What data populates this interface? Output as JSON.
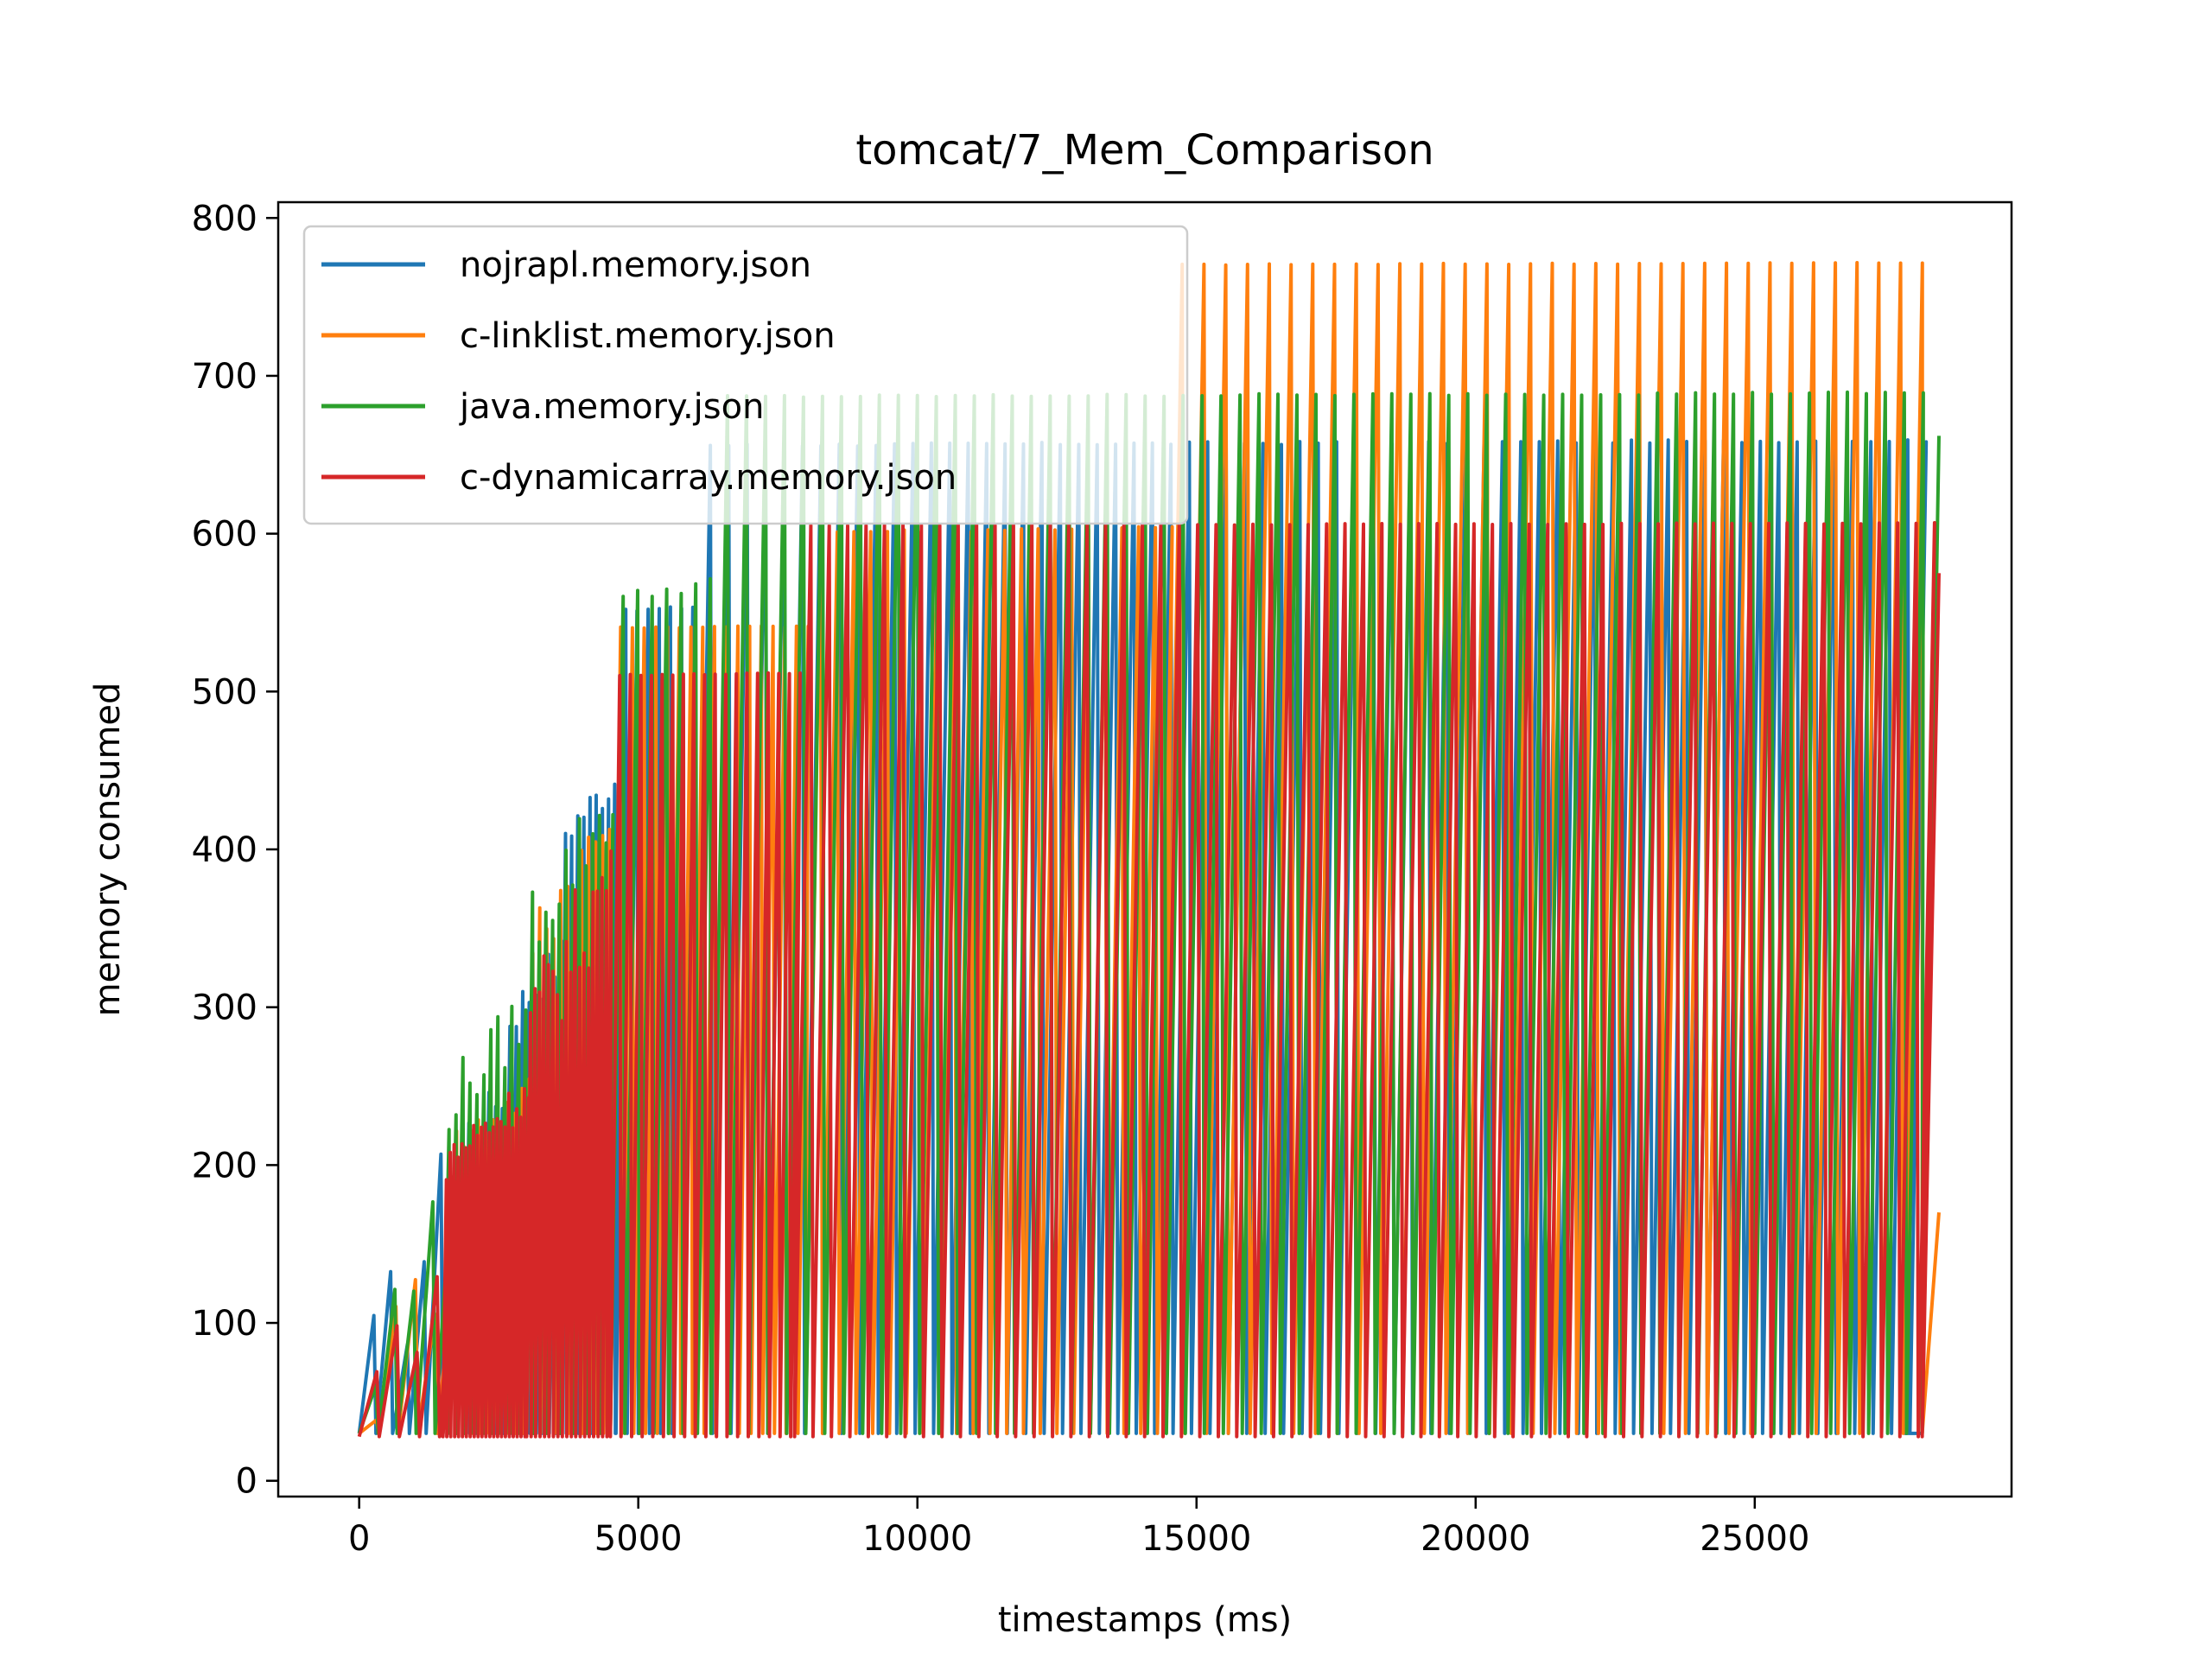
{
  "chart_data": {
    "type": "line",
    "title": "tomcat/7_Mem_Comparison",
    "xlabel": "timestamps (ms)",
    "ylabel": "memory consumed",
    "xlim": [
      -1450,
      29600
    ],
    "ylim": [
      -10,
      810
    ],
    "xticks": [
      0,
      5000,
      10000,
      15000,
      20000,
      25000
    ],
    "yticks": [
      0,
      100,
      200,
      300,
      400,
      500,
      600,
      700,
      800
    ],
    "grid": false,
    "legend_position": "top-left",
    "series": [
      {
        "name": "nojrapl.memory.json",
        "color": "#1f77b4",
        "end": {
          "x": 28000,
          "y": 30
        },
        "segments": [
          {
            "start": 0,
            "end": 1500,
            "period": 300,
            "low": 30,
            "high": [
              30,
              240
            ]
          },
          {
            "start": 1500,
            "end": 2600,
            "period": 120,
            "low": 30,
            "high": [
              200,
              260
            ]
          },
          {
            "start": 2600,
            "end": 3600,
            "period": 115,
            "low": 30,
            "high": [
              280,
              350
            ]
          },
          {
            "start": 3600,
            "end": 4600,
            "period": 110,
            "low": 30,
            "high": [
              400,
              460
            ]
          },
          {
            "start": 4600,
            "end": 6000,
            "period": 200,
            "low": 30,
            "high": [
              550,
              555
            ]
          },
          {
            "start": 6000,
            "end": 28000,
            "period": 330,
            "low": 30,
            "high": [
              655,
              660
            ]
          }
        ]
      },
      {
        "name": "c-linklist.memory.json",
        "color": "#ff7f0e",
        "end": {
          "x": 28300,
          "y": 170
        },
        "segments": [
          {
            "start": 0,
            "end": 1500,
            "period": 350,
            "low": 30,
            "high": [
              30,
              200
            ]
          },
          {
            "start": 1500,
            "end": 3000,
            "period": 130,
            "low": 30,
            "high": [
              200,
              260
            ]
          },
          {
            "start": 3000,
            "end": 4500,
            "period": 125,
            "low": 30,
            "high": [
              320,
              450
            ]
          },
          {
            "start": 4500,
            "end": 8000,
            "period": 210,
            "low": 30,
            "high": [
              540,
              542
            ]
          },
          {
            "start": 8000,
            "end": 14400,
            "period": 300,
            "low": 30,
            "high": [
              600,
              605
            ]
          },
          {
            "start": 14400,
            "end": 28000,
            "period": 390,
            "low": 30,
            "high": [
              770,
              772
            ]
          }
        ]
      },
      {
        "name": "java.memory.json",
        "color": "#2ca02c",
        "end": {
          "x": 28300,
          "y": 662
        },
        "segments": [
          {
            "start": 0,
            "end": 1500,
            "period": 340,
            "low": 30,
            "high": [
              30,
              240
            ]
          },
          {
            "start": 1500,
            "end": 3000,
            "period": 125,
            "low": 30,
            "high": [
              220,
              320
            ]
          },
          {
            "start": 3000,
            "end": 4500,
            "period": 120,
            "low": 30,
            "high": [
              330,
              460
            ]
          },
          {
            "start": 4500,
            "end": 6300,
            "period": 260,
            "low": 30,
            "high": [
              555,
              575
            ]
          },
          {
            "start": 6300,
            "end": 28000,
            "period": 340,
            "low": 30,
            "high": [
              686,
              690
            ]
          }
        ]
      },
      {
        "name": "c-dynamicarray.memory.json",
        "color": "#d62728",
        "end": {
          "x": 28300,
          "y": 575
        },
        "segments": [
          {
            "start": 0,
            "end": 1500,
            "period": 360,
            "low": 28,
            "high": [
              28,
              200
            ]
          },
          {
            "start": 1500,
            "end": 3000,
            "period": 70,
            "low": 28,
            "high": [
              190,
              260
            ]
          },
          {
            "start": 3000,
            "end": 4500,
            "period": 80,
            "low": 28,
            "high": [
              250,
              425
            ]
          },
          {
            "start": 4500,
            "end": 7800,
            "period": 190,
            "low": 28,
            "high": [
              510,
              512
            ]
          },
          {
            "start": 7800,
            "end": 28000,
            "period": 330,
            "low": 28,
            "high": [
              605,
              607
            ]
          }
        ]
      }
    ]
  }
}
